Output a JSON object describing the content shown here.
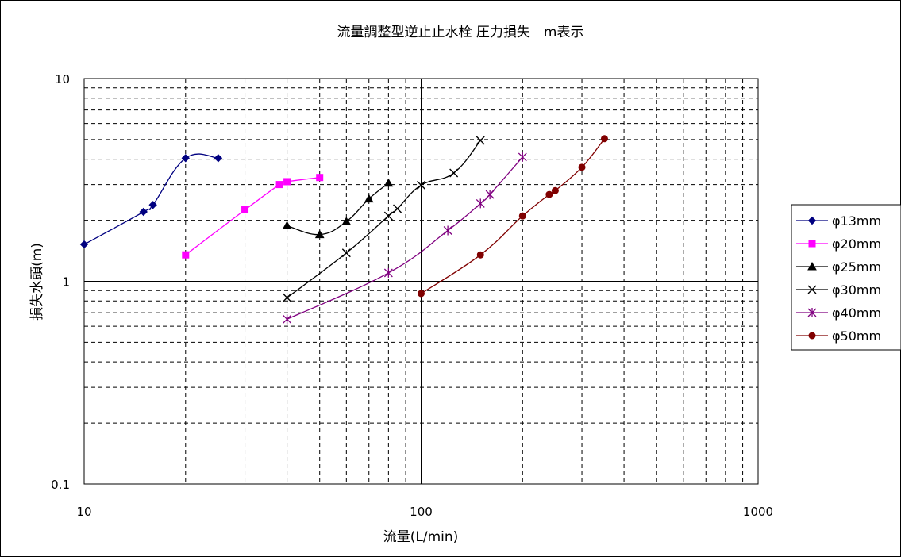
{
  "chart_data": {
    "type": "line",
    "title": "流量調整型逆止止水栓 圧力損失　m表示",
    "xlabel": "流量(L/min)",
    "ylabel": "損失水頭(m)",
    "x_scale": "log",
    "y_scale": "log",
    "xlim": [
      10,
      1000
    ],
    "ylim": [
      0.1,
      10
    ],
    "x_ticks": [
      "10",
      "100",
      "1000"
    ],
    "y_ticks": [
      "0.1",
      "1",
      "10"
    ],
    "grid": true,
    "legend_position": "right",
    "series": [
      {
        "name": "φ13mm",
        "color": "#000080",
        "marker": "diamond",
        "points": [
          [
            10,
            1.52
          ],
          [
            15,
            2.2
          ],
          [
            16,
            2.38
          ],
          [
            20,
            4.05
          ],
          [
            25,
            4.05
          ]
        ]
      },
      {
        "name": "φ20mm",
        "color": "#ff00ff",
        "marker": "square",
        "points": [
          [
            20,
            1.35
          ],
          [
            30,
            2.25
          ],
          [
            38,
            3.0
          ],
          [
            40,
            3.1
          ],
          [
            50,
            3.25
          ]
        ]
      },
      {
        "name": "φ25mm",
        "color": "#000000",
        "marker": "triangle",
        "points": [
          [
            40,
            1.88
          ],
          [
            50,
            1.7
          ],
          [
            60,
            1.97
          ],
          [
            70,
            2.55
          ],
          [
            80,
            3.05
          ]
        ]
      },
      {
        "name": "φ30mm",
        "color": "#000000",
        "marker": "x",
        "points": [
          [
            40,
            0.83
          ],
          [
            60,
            1.38
          ],
          [
            80,
            2.1
          ],
          [
            85,
            2.28
          ],
          [
            100,
            2.98
          ],
          [
            125,
            3.42
          ],
          [
            150,
            4.95
          ]
        ]
      },
      {
        "name": "φ40mm",
        "color": "#800080",
        "marker": "star",
        "points": [
          [
            40,
            0.65
          ],
          [
            80,
            1.1
          ],
          [
            120,
            1.78
          ],
          [
            150,
            2.42
          ],
          [
            160,
            2.68
          ],
          [
            200,
            4.1
          ]
        ]
      },
      {
        "name": "φ50mm",
        "color": "#800000",
        "marker": "circle",
        "points": [
          [
            100,
            0.87
          ],
          [
            150,
            1.35
          ],
          [
            200,
            2.1
          ],
          [
            240,
            2.68
          ],
          [
            250,
            2.8
          ],
          [
            300,
            3.65
          ],
          [
            350,
            5.05
          ]
        ]
      }
    ]
  }
}
